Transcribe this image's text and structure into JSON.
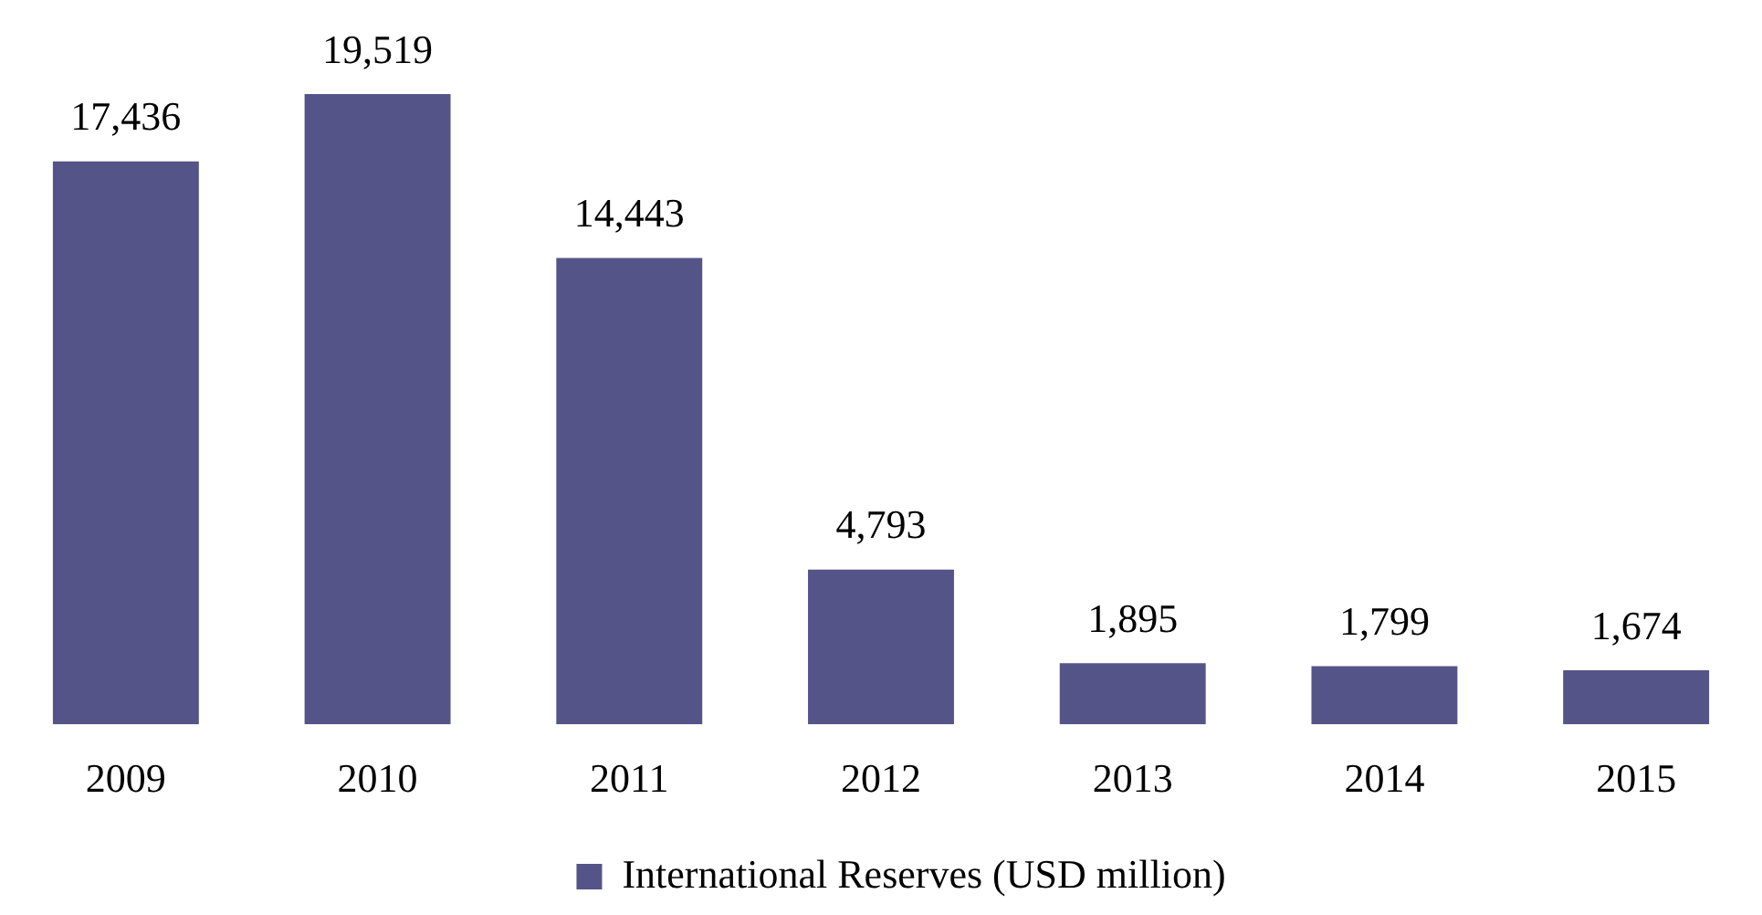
{
  "chart_data": {
    "type": "bar",
    "categories": [
      "2009",
      "2010",
      "2011",
      "2012",
      "2013",
      "2014",
      "2015"
    ],
    "series": [
      {
        "name": "International Reserves (USD million)",
        "color": "#545488",
        "values": [
          17436,
          19519,
          14443,
          4793,
          1895,
          1799,
          1674
        ],
        "value_labels": [
          "17,436",
          "19,519",
          "14,443",
          "4,793",
          "1,895",
          "1,799",
          "1,674"
        ]
      }
    ],
    "grid": false,
    "legend": "bottom"
  }
}
